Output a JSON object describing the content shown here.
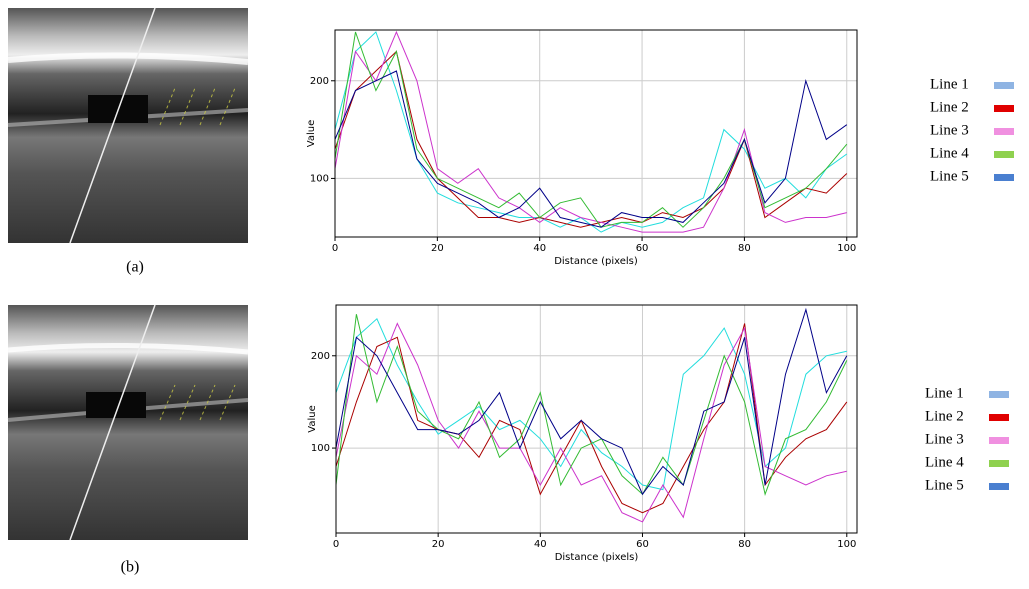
{
  "chart_data": [
    {
      "type": "line",
      "caption": "(a)",
      "x_label": "Distance (pixels)",
      "y_label": "Value",
      "xlim": [
        0,
        102
      ],
      "ylim": [
        40,
        252
      ],
      "xticks": [
        0,
        20,
        40,
        60,
        80,
        100
      ],
      "yticks": [
        100,
        200
      ],
      "grid": true,
      "x": [
        0,
        4,
        8,
        12,
        16,
        20,
        24,
        28,
        32,
        36,
        40,
        44,
        48,
        52,
        56,
        60,
        64,
        68,
        72,
        76,
        80,
        84,
        88,
        92,
        96,
        100
      ],
      "series": [
        {
          "name": "Line 1",
          "color": "#22dddd",
          "legend_color": "#8fb4e3",
          "values": [
            150,
            230,
            250,
            190,
            120,
            85,
            75,
            70,
            65,
            60,
            60,
            50,
            60,
            45,
            55,
            50,
            55,
            70,
            80,
            150,
            130,
            90,
            100,
            80,
            110,
            125
          ]
        },
        {
          "name": "Line 2",
          "color": "#aa0000",
          "legend_color": "#e00000",
          "values": [
            130,
            190,
            210,
            230,
            140,
            100,
            80,
            60,
            60,
            55,
            60,
            55,
            50,
            55,
            60,
            55,
            65,
            60,
            70,
            90,
            140,
            60,
            75,
            90,
            85,
            105
          ]
        },
        {
          "name": "Line 3",
          "color": "#cc33cc",
          "legend_color": "#f090e0",
          "values": [
            110,
            230,
            200,
            250,
            200,
            110,
            95,
            110,
            80,
            70,
            55,
            70,
            60,
            55,
            50,
            45,
            45,
            45,
            50,
            90,
            150,
            65,
            55,
            60,
            60,
            65
          ]
        },
        {
          "name": "Line 4",
          "color": "#33bb33",
          "legend_color": "#8fd14f",
          "values": [
            120,
            250,
            190,
            230,
            130,
            100,
            90,
            80,
            70,
            85,
            60,
            75,
            80,
            50,
            55,
            55,
            70,
            50,
            70,
            100,
            140,
            70,
            80,
            90,
            110,
            135
          ]
        },
        {
          "name": "Line 5",
          "color": "#000088",
          "legend_color": "#4a7fd0",
          "values": [
            140,
            190,
            200,
            210,
            120,
            95,
            85,
            75,
            60,
            70,
            90,
            60,
            55,
            50,
            65,
            60,
            60,
            55,
            75,
            95,
            140,
            75,
            100,
            200,
            140,
            155
          ]
        }
      ]
    },
    {
      "type": "line",
      "caption": "(b)",
      "x_label": "Distance (pixels)",
      "y_label": "Value",
      "xlim": [
        0,
        102
      ],
      "ylim": [
        8,
        255
      ],
      "xticks": [
        0,
        20,
        40,
        60,
        80,
        100
      ],
      "yticks": [
        100,
        200
      ],
      "grid": true,
      "x": [
        0,
        4,
        8,
        12,
        16,
        20,
        24,
        28,
        32,
        36,
        40,
        44,
        48,
        52,
        56,
        60,
        64,
        68,
        72,
        76,
        80,
        84,
        88,
        92,
        96,
        100
      ],
      "series": [
        {
          "name": "Line 1",
          "color": "#22dddd",
          "legend_color": "#8fb4e3",
          "values": [
            160,
            220,
            240,
            190,
            150,
            115,
            130,
            145,
            120,
            130,
            110,
            80,
            120,
            95,
            80,
            60,
            55,
            180,
            200,
            230,
            180,
            80,
            100,
            180,
            200,
            205
          ]
        },
        {
          "name": "Line 2",
          "color": "#aa0000",
          "legend_color": "#e00000",
          "values": [
            80,
            150,
            210,
            220,
            130,
            120,
            115,
            90,
            130,
            120,
            50,
            90,
            130,
            80,
            40,
            30,
            40,
            80,
            120,
            150,
            235,
            60,
            90,
            110,
            120,
            150
          ]
        },
        {
          "name": "Line 3",
          "color": "#cc33cc",
          "legend_color": "#f090e0",
          "values": [
            90,
            200,
            180,
            235,
            190,
            130,
            100,
            140,
            100,
            100,
            60,
            100,
            60,
            70,
            30,
            20,
            60,
            25,
            110,
            190,
            230,
            80,
            70,
            60,
            70,
            75
          ]
        },
        {
          "name": "Line 4",
          "color": "#33bb33",
          "legend_color": "#8fd14f",
          "values": [
            60,
            245,
            150,
            210,
            140,
            120,
            110,
            150,
            90,
            110,
            160,
            60,
            100,
            110,
            70,
            50,
            90,
            60,
            130,
            200,
            150,
            50,
            110,
            120,
            150,
            195
          ]
        },
        {
          "name": "Line 5",
          "color": "#000088",
          "legend_color": "#4a7fd0",
          "values": [
            100,
            220,
            200,
            160,
            120,
            120,
            115,
            130,
            160,
            100,
            150,
            110,
            130,
            110,
            100,
            50,
            80,
            60,
            140,
            150,
            220,
            60,
            180,
            250,
            160,
            200
          ]
        }
      ]
    }
  ]
}
